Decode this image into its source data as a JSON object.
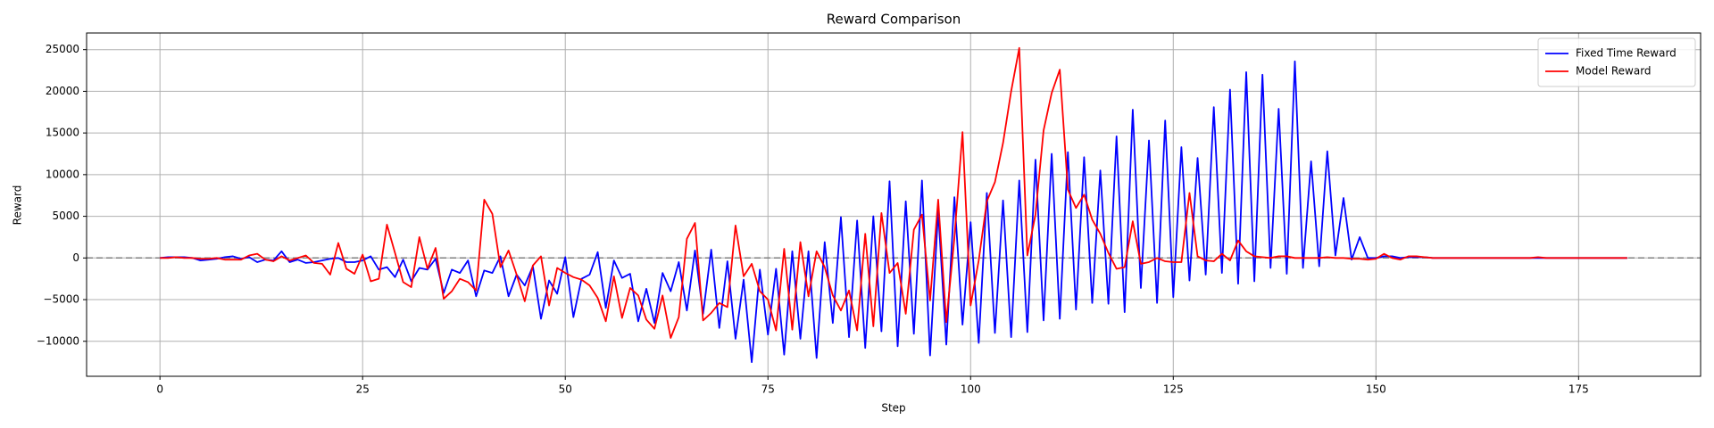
{
  "chart_data": {
    "type": "line",
    "title": "Reward Comparison",
    "xlabel": "Step",
    "ylabel": "Reward",
    "x": [
      0,
      1,
      2,
      3,
      4,
      5,
      6,
      7,
      8,
      9,
      10,
      11,
      12,
      13,
      14,
      15,
      16,
      17,
      18,
      19,
      20,
      21,
      22,
      23,
      24,
      25,
      26,
      27,
      28,
      29,
      30,
      31,
      32,
      33,
      34,
      35,
      36,
      37,
      38,
      39,
      40,
      41,
      42,
      43,
      44,
      45,
      46,
      47,
      48,
      49,
      50,
      51,
      52,
      53,
      54,
      55,
      56,
      57,
      58,
      59,
      60,
      61,
      62,
      63,
      64,
      65,
      66,
      67,
      68,
      69,
      70,
      71,
      72,
      73,
      74,
      75,
      76,
      77,
      78,
      79,
      80,
      81,
      82,
      83,
      84,
      85,
      86,
      87,
      88,
      89,
      90,
      91,
      92,
      93,
      94,
      95,
      96,
      97,
      98,
      99,
      100,
      101,
      102,
      103,
      104,
      105,
      106,
      107,
      108,
      109,
      110,
      111,
      112,
      113,
      114,
      115,
      116,
      117,
      118,
      119,
      120,
      121,
      122,
      123,
      124,
      125,
      126,
      127,
      128,
      129,
      130,
      131,
      132,
      133,
      134,
      135,
      136,
      137,
      138,
      139,
      140,
      141,
      142,
      143,
      144,
      145,
      146,
      147,
      148,
      149,
      150,
      151,
      152,
      153,
      154,
      155,
      156,
      157,
      158,
      159,
      160,
      161,
      162,
      163,
      164,
      165,
      166,
      167,
      168,
      169,
      170,
      171,
      172,
      173,
      174,
      175,
      176,
      177,
      178,
      179,
      180,
      181
    ],
    "series": [
      {
        "name": "Fixed Time Reward",
        "color": "#0000ff",
        "values": [
          0,
          100,
          100,
          100,
          0,
          -300,
          -200,
          -100,
          100,
          200,
          -100,
          100,
          -500,
          -200,
          -300,
          800,
          -500,
          -200,
          -600,
          -500,
          -300,
          -100,
          0,
          -500,
          -500,
          -300,
          200,
          -1400,
          -1100,
          -2300,
          -200,
          -2800,
          -1200,
          -1400,
          -100,
          -4200,
          -1400,
          -1800,
          -300,
          -4600,
          -1500,
          -1800,
          200,
          -4600,
          -2000,
          -3300,
          -1000,
          -7300,
          -2700,
          -4300,
          100,
          -7100,
          -2500,
          -2000,
          700,
          -6000,
          -300,
          -2400,
          -1900,
          -7600,
          -3700,
          -7800,
          -1800,
          -4000,
          -500,
          -6300,
          900,
          -6700,
          1000,
          -8400,
          -400,
          -9700,
          -2600,
          -12500,
          -1400,
          -9200,
          -1300,
          -11600,
          800,
          -9700,
          800,
          -12000,
          1900,
          -7800,
          4900,
          -9500,
          4500,
          -10800,
          5000,
          -8800,
          9200,
          -10600,
          6800,
          -9100,
          9300,
          -11700,
          5600,
          -10400,
          7300,
          -8000,
          4300,
          -10200,
          7800,
          -9000,
          6900,
          -9500,
          9300,
          -8900,
          11800,
          -7500,
          12500,
          -7300,
          12700,
          -6200,
          12100,
          -5400,
          10500,
          -5500,
          14600,
          -6500,
          17800,
          -3600,
          14100,
          -5400,
          16500,
          -4700,
          13300,
          -2700,
          12000,
          -2000,
          18100,
          -1800,
          20200,
          -3100,
          22300,
          -2800,
          22000,
          -1200,
          17900,
          -1900,
          23600,
          -1200,
          11600,
          -1000,
          12800,
          300,
          7200,
          -200,
          2500,
          0,
          0,
          200,
          200,
          0,
          100,
          100,
          100,
          0,
          0,
          0,
          0,
          0,
          0,
          0,
          0,
          0,
          0,
          0,
          0,
          0,
          0,
          0,
          0,
          0,
          0,
          0,
          0,
          0,
          0,
          0,
          0,
          0
        ]
      },
      {
        "name": "Model Reward",
        "color": "#ff0000",
        "values": [
          0,
          0,
          100,
          0,
          0,
          -100,
          -100,
          0,
          -200,
          -200,
          -200,
          300,
          500,
          -200,
          -400,
          200,
          -300,
          0,
          300,
          -600,
          -700,
          -2000,
          1800,
          -1300,
          -1900,
          400,
          -2800,
          -2500,
          4000,
          600,
          -2900,
          -3500,
          2500,
          -1300,
          1200,
          -4900,
          -4000,
          -2500,
          -2900,
          -3900,
          7000,
          5300,
          -1100,
          900,
          -2000,
          -5200,
          -900,
          200,
          -5700,
          -1200,
          -1800,
          -2300,
          -2600,
          -3300,
          -4800,
          -7600,
          -2200,
          -7200,
          -3600,
          -4500,
          -7400,
          -8500,
          -4500,
          -9600,
          -7100,
          2300,
          4200,
          -7500,
          -6600,
          -5400,
          -5900,
          3900,
          -2200,
          -700,
          -4000,
          -5000,
          -8700,
          1100,
          -8600,
          1900,
          -4600,
          800,
          -1100,
          -4500,
          -6300,
          -3900,
          -8700,
          2900,
          -8200,
          5400,
          -1800,
          -600,
          -6700,
          3400,
          5200,
          -5100,
          7000,
          -7700,
          2400,
          15100,
          -5700,
          -300,
          6800,
          9100,
          13800,
          20000,
          25200,
          300,
          5200,
          15300,
          19800,
          22600,
          8200,
          6000,
          7600,
          4600,
          2900,
          600,
          -1300,
          -1100,
          4400,
          -700,
          -500,
          0,
          -400,
          -500,
          -500,
          7800,
          200,
          -300,
          -400,
          500,
          -300,
          2100,
          800,
          200,
          100,
          0,
          200,
          200,
          0,
          0,
          0,
          0,
          100,
          0,
          0,
          -100,
          -100,
          -200,
          -100,
          500,
          0,
          -200,
          200,
          200,
          100,
          0,
          0,
          0,
          0,
          0,
          0,
          0,
          0,
          0,
          0,
          0,
          0,
          0,
          100,
          0,
          0,
          0,
          0,
          0,
          0,
          0,
          0,
          0,
          0,
          0
        ]
      }
    ],
    "xlim": [
      -9.05,
      190.05
    ],
    "ylim": [
      -14200,
      27000
    ],
    "xticks": [
      0,
      25,
      50,
      75,
      100,
      125,
      150,
      175
    ],
    "yticks": [
      {
        "value": -10000,
        "label": "−10000"
      },
      {
        "value": -5000,
        "label": "−5000"
      },
      0,
      5000,
      10000,
      15000,
      20000,
      25000
    ],
    "hline": 0,
    "grid": true,
    "legend": "upper right"
  }
}
